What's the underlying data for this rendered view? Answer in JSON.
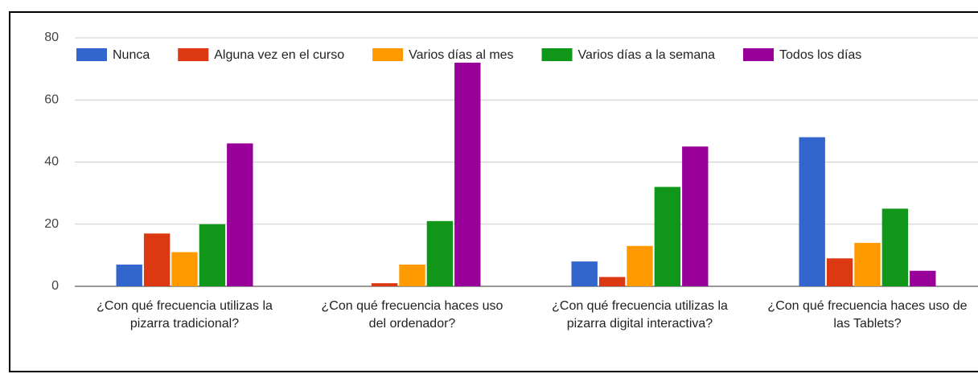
{
  "chart_data": {
    "type": "bar",
    "categories": [
      "¿Con qué frecuencia utilizas la pizarra tradicional?",
      "¿Con qué frecuencia haces uso del ordenador?",
      "¿Con qué frecuencia utilizas la pizarra digital interactiva?",
      "¿Con qué frecuencia haces uso de las Tablets?"
    ],
    "series": [
      {
        "name": "Nunca",
        "color": "#3366cc",
        "values": [
          7,
          0,
          8,
          48
        ]
      },
      {
        "name": "Alguna vez en el curso",
        "color": "#dc3912",
        "values": [
          17,
          1,
          3,
          9
        ]
      },
      {
        "name": "Varios días al mes",
        "color": "#ff9900",
        "values": [
          11,
          7,
          13,
          14
        ]
      },
      {
        "name": "Varios días a la semana",
        "color": "#109618",
        "values": [
          20,
          21,
          32,
          25
        ]
      },
      {
        "name": "Todos los días",
        "color": "#990099",
        "values": [
          46,
          72,
          45,
          5
        ]
      }
    ],
    "ylim": [
      0,
      80
    ],
    "yticks": [
      0,
      20,
      40,
      60,
      80
    ],
    "grid": true,
    "legend": "top"
  }
}
